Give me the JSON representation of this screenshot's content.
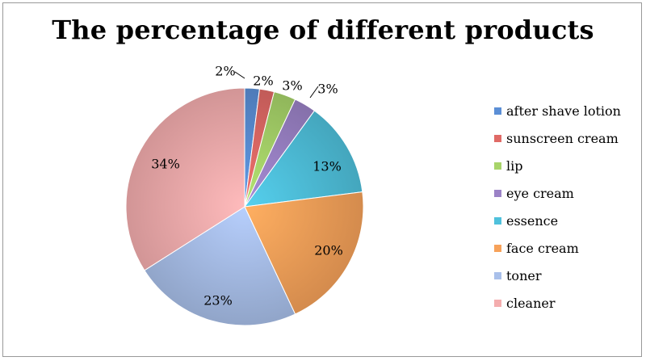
{
  "chart_data": {
    "type": "pie",
    "title": "The percentage of different products",
    "slices": [
      {
        "name": "after shave lotion",
        "value": 2,
        "label": "2%",
        "color": "#5b8fd6"
      },
      {
        "name": "sunscreen cream",
        "value": 2,
        "label": "2%",
        "color": "#e06a66"
      },
      {
        "name": "lip",
        "value": 3,
        "label": "3%",
        "color": "#a8d46a"
      },
      {
        "name": "eye cream",
        "value": 3,
        "label": "3%",
        "color": "#9b82c6"
      },
      {
        "name": "essence",
        "value": 13,
        "label": "13%",
        "color": "#4fc1dc"
      },
      {
        "name": "face cream",
        "value": 20,
        "label": "20%",
        "color": "#f7a25a"
      },
      {
        "name": "toner",
        "value": 23,
        "label": "23%",
        "color": "#a9c0ea"
      },
      {
        "name": "cleaner",
        "value": 34,
        "label": "34%",
        "color": "#f4adae"
      }
    ],
    "legend_position": "right"
  }
}
